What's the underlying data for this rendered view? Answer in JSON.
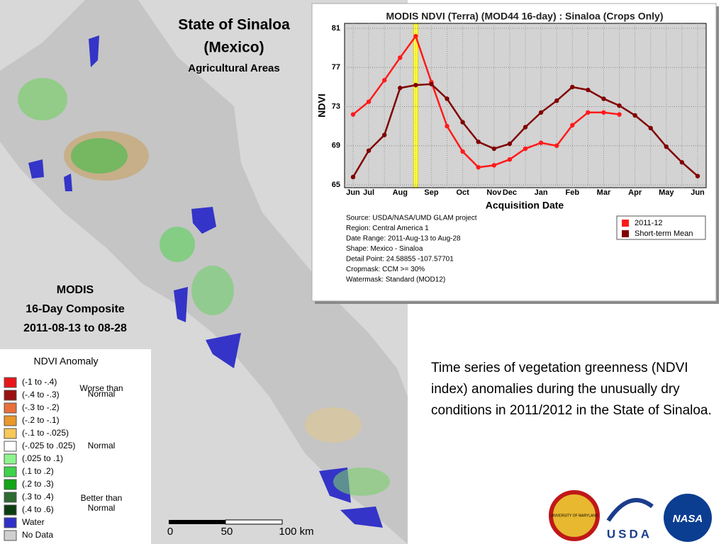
{
  "map": {
    "title": "State of Sinaloa",
    "subtitle": "(Mexico)",
    "subtitle2": "Agricultural Areas",
    "composite": [
      "MODIS",
      "16-Day Composite",
      "2011-08-13 to 08-28"
    ],
    "scale": [
      "0",
      "50",
      "100 km"
    ]
  },
  "legend": {
    "title": "NDVI Anomaly",
    "items": [
      {
        "label": "(-1 to -.4)",
        "color": "#e8161b"
      },
      {
        "label": "(-.4 to -.3)",
        "color": "#9b1010"
      },
      {
        "label": "(-.3 to -.2)",
        "color": "#e9703a"
      },
      {
        "label": "(-.2 to -.1)",
        "color": "#e9982c"
      },
      {
        "label": "(-.1 to -.025)",
        "color": "#f7c85a"
      },
      {
        "label": "(-.025 to .025)",
        "color": "#ffffff"
      },
      {
        "label": "(.025 to .1)",
        "color": "#8ef58e"
      },
      {
        "label": "(.1 to .2)",
        "color": "#3dd34a"
      },
      {
        "label": "(.2 to .3)",
        "color": "#10a618"
      },
      {
        "label": "(.3 to .4)",
        "color": "#2f6b32"
      },
      {
        "label": "(.4 to .6)",
        "color": "#0c3d10"
      },
      {
        "label": "Water",
        "color": "#3030c8"
      },
      {
        "label": "No Data",
        "color": "#d0d0d0"
      }
    ],
    "groups": [
      "Worse than",
      "Normal",
      "Normal",
      "Better than",
      "Normal"
    ]
  },
  "chart_data": {
    "type": "line",
    "title": "MODIS NDVI (Terra) (MOD44 16-day) : Sinaloa (Crops Only)",
    "ylabel": "NDVI",
    "xlabel": "Acquisition Date",
    "categories": [
      "Jun",
      "Jul",
      null,
      "Aug",
      null,
      "Sep",
      null,
      "Oct",
      null,
      "Nov",
      "Dec",
      null,
      "Jan",
      null,
      "Feb",
      null,
      "Mar",
      null,
      "Apr",
      null,
      "May",
      null,
      "Jun"
    ],
    "series": [
      {
        "name": "2011-12",
        "color": "#ff1a1a",
        "values": [
          72.2,
          73.5,
          75.7,
          78,
          80.2,
          75.5,
          71,
          68.4,
          66.8,
          67,
          67.6,
          68.7,
          69.3,
          69,
          71.1,
          72.4,
          72.4,
          72.2,
          null,
          null,
          null,
          null,
          null
        ]
      },
      {
        "name": "Short-term Mean",
        "color": "#800000",
        "values": [
          65.8,
          68.5,
          70.1,
          74.9,
          75.2,
          75.3,
          73.8,
          71.4,
          69.4,
          68.7,
          69.2,
          70.9,
          72.4,
          73.6,
          75,
          74.7,
          73.8,
          73.1,
          72.1,
          70.8,
          68.9,
          67.3,
          65.9
        ]
      }
    ],
    "ylim": [
      65,
      81
    ],
    "yticks": [
      65,
      69,
      73,
      77,
      81
    ],
    "grid": true,
    "notes": [
      "Source: USDA/NASA/UMD GLAM project",
      "Region: Central America 1",
      "Date Range: 2011-Aug-13 to Aug-28",
      "Shape: Mexico - Sinaloa",
      "Detail Point: 24.58855 -107.57701",
      "Cropmask: CCM >= 30%",
      "Watermask: Standard (MOD12)"
    ]
  },
  "caption": "Time series of vegetation greenness (NDVI index) anomalies during the unusually dry conditions in 2011/2012 in the State of Sinaloa.",
  "logos": [
    "UNIVERSITY OF MARYLAND",
    "USDA",
    "NASA"
  ]
}
